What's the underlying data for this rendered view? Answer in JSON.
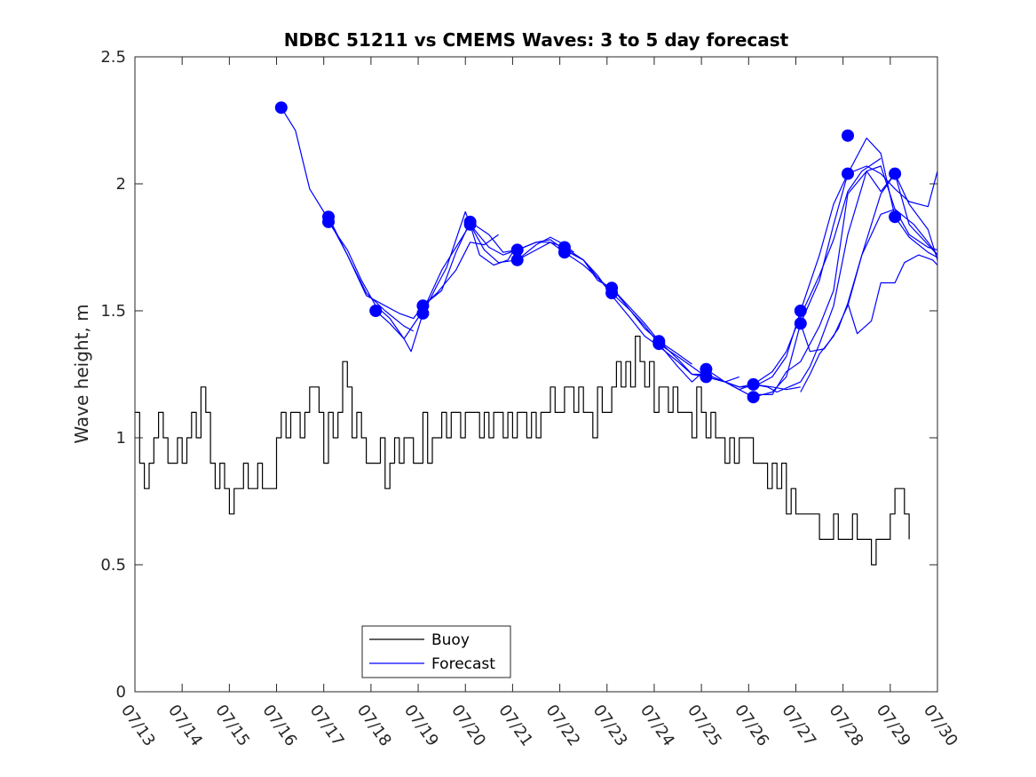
{
  "chart_data": {
    "type": "line",
    "title": "NDBC 51211 vs CMEMS Waves: 3 to 5 day forecast",
    "xlabel": "",
    "ylabel": "Wave height, m",
    "xlim": [
      "07/13",
      "07/30"
    ],
    "ylim": [
      0,
      2.5
    ],
    "x_tick_labels": [
      "07/13",
      "07/14",
      "07/15",
      "07/16",
      "07/17",
      "07/18",
      "07/19",
      "07/20",
      "07/21",
      "07/22",
      "07/23",
      "07/24",
      "07/25",
      "07/26",
      "07/27",
      "07/28",
      "07/29",
      "07/30"
    ],
    "y_ticks": [
      0,
      0.5,
      1,
      1.5,
      2,
      2.5
    ],
    "y_tick_labels": [
      "0",
      "0.5",
      "1",
      "1.5",
      "2",
      "2.5"
    ],
    "x_unit": "days since 07/13 00:00",
    "grid": false,
    "legend": {
      "position": "bottom-center",
      "entries": [
        {
          "name": "Buoy",
          "color": "#000000"
        },
        {
          "name": "Forecast",
          "color": "#0000ff"
        }
      ]
    },
    "series": [
      {
        "name": "Buoy",
        "color": "#000000",
        "x": [
          0.0,
          0.1,
          0.2,
          0.3,
          0.4,
          0.5,
          0.6,
          0.7,
          0.8,
          0.9,
          1.0,
          1.1,
          1.2,
          1.3,
          1.4,
          1.5,
          1.6,
          1.7,
          1.8,
          1.9,
          2.0,
          2.1,
          2.2,
          2.3,
          2.4,
          2.5,
          2.6,
          2.7,
          2.8,
          2.9,
          3.0,
          3.1,
          3.2,
          3.3,
          3.4,
          3.5,
          3.6,
          3.7,
          3.8,
          3.9,
          4.0,
          4.1,
          4.2,
          4.3,
          4.4,
          4.5,
          4.6,
          4.7,
          4.8,
          4.9,
          5.0,
          5.1,
          5.2,
          5.3,
          5.4,
          5.5,
          5.6,
          5.7,
          5.8,
          5.9,
          6.0,
          6.1,
          6.2,
          6.3,
          6.4,
          6.5,
          6.6,
          6.7,
          6.8,
          6.9,
          7.0,
          7.1,
          7.2,
          7.3,
          7.4,
          7.5,
          7.6,
          7.7,
          7.8,
          7.9,
          8.0,
          8.1,
          8.2,
          8.3,
          8.4,
          8.5,
          8.6,
          8.7,
          8.8,
          8.9,
          9.0,
          9.1,
          9.2,
          9.3,
          9.4,
          9.5,
          9.6,
          9.7,
          9.8,
          9.9,
          10.0,
          10.1,
          10.2,
          10.3,
          10.4,
          10.5,
          10.6,
          10.7,
          10.8,
          10.9,
          11.0,
          11.1,
          11.2,
          11.3,
          11.4,
          11.5,
          11.6,
          11.7,
          11.8,
          11.9,
          12.0,
          12.1,
          12.2,
          12.3,
          12.4,
          12.5,
          12.6,
          12.7,
          12.8,
          12.9,
          13.0,
          13.1,
          13.2,
          13.3,
          13.4,
          13.5,
          13.6,
          13.7,
          13.8,
          13.9,
          14.0,
          14.1,
          14.2,
          14.3,
          14.4,
          14.5,
          14.6,
          14.7,
          14.8,
          14.9,
          15.0,
          15.1,
          15.2,
          15.3,
          15.4,
          15.5,
          15.6,
          15.7,
          15.8,
          15.9,
          16.0,
          16.1,
          16.2,
          16.3,
          16.4
        ],
        "values": [
          1.1,
          0.9,
          0.8,
          0.9,
          1.0,
          1.1,
          1.0,
          0.9,
          0.9,
          1.0,
          0.9,
          1.0,
          1.1,
          1.0,
          1.2,
          1.1,
          0.9,
          0.8,
          0.9,
          0.8,
          0.7,
          0.8,
          0.8,
          0.9,
          0.8,
          0.8,
          0.9,
          0.8,
          0.8,
          0.8,
          1.0,
          1.1,
          1.0,
          1.1,
          1.1,
          1.0,
          1.1,
          1.2,
          1.2,
          1.1,
          0.9,
          1.1,
          1.0,
          1.1,
          1.3,
          1.2,
          1.0,
          1.1,
          1.0,
          0.9,
          0.9,
          0.9,
          1.0,
          0.8,
          0.9,
          1.0,
          0.9,
          1.0,
          1.0,
          0.9,
          0.9,
          1.1,
          0.9,
          1.0,
          1.0,
          1.1,
          1.0,
          1.1,
          1.1,
          1.0,
          1.1,
          1.1,
          1.1,
          1.0,
          1.1,
          1.0,
          1.1,
          1.1,
          1.0,
          1.1,
          1.0,
          1.1,
          1.1,
          1.0,
          1.1,
          1.0,
          1.1,
          1.1,
          1.2,
          1.1,
          1.1,
          1.2,
          1.2,
          1.1,
          1.2,
          1.1,
          1.1,
          1.0,
          1.2,
          1.1,
          1.1,
          1.2,
          1.3,
          1.2,
          1.3,
          1.2,
          1.4,
          1.3,
          1.2,
          1.3,
          1.1,
          1.2,
          1.2,
          1.1,
          1.2,
          1.1,
          1.1,
          1.1,
          1.0,
          1.2,
          1.1,
          1.0,
          1.1,
          1.0,
          1.0,
          0.9,
          1.0,
          0.9,
          1.0,
          1.0,
          1.0,
          0.9,
          0.9,
          0.9,
          0.8,
          0.9,
          0.8,
          0.9,
          0.7,
          0.8,
          0.7,
          0.7,
          0.7,
          0.7,
          0.7,
          0.6,
          0.6,
          0.6,
          0.7,
          0.6,
          0.6,
          0.6,
          0.7,
          0.6,
          0.6,
          0.6,
          0.5,
          0.6,
          0.6,
          0.6,
          0.7,
          0.8,
          0.8,
          0.7,
          0.6
        ]
      },
      {
        "name": "Forecast",
        "color": "#0000ff",
        "x": [
          3.1,
          3.4,
          3.7,
          4.1,
          4.5,
          4.9,
          5.3,
          5.7,
          5.9
        ],
        "values": [
          2.3,
          2.21,
          1.98,
          1.86,
          1.72,
          1.57,
          1.5,
          1.44,
          1.42
        ]
      },
      {
        "name": "",
        "color": "#0000ff",
        "x": [
          4.1,
          4.5,
          4.9,
          5.3,
          5.6,
          5.9,
          6.1,
          6.4,
          6.8,
          7.1,
          7.4,
          7.7
        ],
        "values": [
          1.87,
          1.72,
          1.56,
          1.52,
          1.49,
          1.47,
          1.52,
          1.57,
          1.66,
          1.77,
          1.76,
          1.8
        ]
      },
      {
        "name": "",
        "color": "#0000ff",
        "x": [
          4.1,
          4.5,
          4.8,
          5.1,
          5.4,
          5.7,
          5.85,
          6.1,
          6.4,
          6.6,
          7.0,
          7.1,
          7.3,
          7.6,
          7.9,
          8.1
        ],
        "values": [
          1.85,
          1.74,
          1.62,
          1.52,
          1.47,
          1.39,
          1.34,
          1.49,
          1.6,
          1.67,
          1.89,
          1.84,
          1.72,
          1.68,
          1.7,
          1.76
        ]
      },
      {
        "name": "",
        "color": "#0000ff",
        "x": [
          5.1,
          5.4,
          5.7,
          6.1,
          6.5,
          6.8,
          7.1,
          7.4,
          7.7,
          8.1,
          8.5,
          8.8,
          9.1,
          9.3
        ],
        "values": [
          1.5,
          1.45,
          1.39,
          1.5,
          1.66,
          1.75,
          1.84,
          1.74,
          1.69,
          1.7,
          1.76,
          1.79,
          1.76,
          1.73
        ]
      },
      {
        "name": "",
        "color": "#0000ff",
        "x": [
          6.1,
          6.5,
          6.8,
          7.1,
          7.5,
          7.8,
          8.1,
          8.5,
          8.8,
          9.1,
          9.5,
          9.8,
          10.1
        ],
        "values": [
          1.52,
          1.58,
          1.73,
          1.85,
          1.8,
          1.73,
          1.74,
          1.77,
          1.78,
          1.74,
          1.7,
          1.63,
          1.58
        ]
      },
      {
        "name": "",
        "color": "#0000ff",
        "x": [
          7.1,
          7.5,
          7.8,
          8.1,
          8.5,
          8.8,
          9.1,
          9.5,
          9.8,
          10.1,
          10.5,
          10.8,
          11.1,
          11.5,
          11.8
        ],
        "values": [
          1.84,
          1.75,
          1.72,
          1.74,
          1.77,
          1.77,
          1.75,
          1.7,
          1.62,
          1.59,
          1.5,
          1.43,
          1.38,
          1.33,
          1.29
        ]
      },
      {
        "name": "",
        "color": "#0000ff",
        "x": [
          8.1,
          8.5,
          8.8,
          9.1,
          9.5,
          9.8,
          10.1,
          10.5,
          10.8,
          11.1,
          11.5,
          11.8,
          12.1,
          12.5,
          12.8
        ],
        "values": [
          1.7,
          1.74,
          1.77,
          1.73,
          1.68,
          1.63,
          1.57,
          1.5,
          1.44,
          1.37,
          1.32,
          1.28,
          1.24,
          1.22,
          1.24
        ]
      },
      {
        "name": "",
        "color": "#0000ff",
        "x": [
          9.1,
          9.5,
          9.8,
          10.1,
          10.5,
          10.8,
          11.1,
          11.5,
          11.8,
          12.1,
          12.5,
          12.8,
          13.1,
          13.5,
          13.8,
          14.1
        ],
        "values": [
          1.74,
          1.7,
          1.64,
          1.56,
          1.47,
          1.4,
          1.36,
          1.3,
          1.25,
          1.24,
          1.22,
          1.2,
          1.21,
          1.2,
          1.19,
          1.2
        ]
      },
      {
        "name": "",
        "color": "#0000ff",
        "x": [
          10.1,
          10.5,
          10.8,
          11.1,
          11.5,
          11.8,
          12.1,
          12.5,
          12.8,
          13.1,
          13.5,
          13.8,
          14.1,
          14.5,
          14.8,
          15.1,
          15.4,
          15.8
        ],
        "values": [
          1.59,
          1.51,
          1.45,
          1.38,
          1.31,
          1.25,
          1.25,
          1.22,
          1.19,
          1.21,
          1.26,
          1.34,
          1.48,
          1.64,
          1.78,
          1.97,
          2.05,
          2.1
        ]
      },
      {
        "name": "",
        "color": "#0000ff",
        "x": [
          11.1,
          11.5,
          11.8,
          12.1,
          12.5,
          12.8,
          13.1,
          13.5,
          13.8,
          14.1,
          14.5,
          14.8,
          15.1,
          15.5,
          15.8,
          16.1,
          16.4,
          16.8,
          17.0
        ],
        "values": [
          1.37,
          1.28,
          1.22,
          1.27,
          1.22,
          1.19,
          1.16,
          1.18,
          1.24,
          1.45,
          1.62,
          1.84,
          2.04,
          2.18,
          2.12,
          1.87,
          1.79,
          1.73,
          1.71
        ]
      },
      {
        "name": "",
        "color": "#0000ff",
        "x": [
          12.1,
          12.5,
          12.8,
          13.1,
          13.5,
          13.8,
          14.1,
          14.5,
          14.8,
          15.1,
          15.5,
          15.8,
          16.1,
          16.4,
          16.8,
          17.0
        ],
        "values": [
          1.25,
          1.22,
          1.2,
          1.2,
          1.24,
          1.32,
          1.5,
          1.72,
          1.92,
          2.04,
          2.07,
          2.04,
          1.98,
          1.93,
          1.91,
          2.05
        ]
      },
      {
        "name": "",
        "color": "#0000ff",
        "x": [
          13.1,
          13.5,
          13.8,
          14.1,
          14.5,
          14.8,
          15.1,
          15.5,
          15.8,
          16.1,
          16.4,
          16.8,
          17.0
        ],
        "values": [
          1.17,
          1.17,
          1.26,
          1.3,
          1.44,
          1.58,
          1.96,
          2.05,
          2.07,
          1.9,
          1.8,
          1.75,
          1.74
        ]
      },
      {
        "name": "",
        "color": "#0000ff",
        "x": [
          13.1,
          13.4,
          13.6,
          14.1,
          14.3,
          14.5,
          14.8,
          15.1,
          15.5,
          15.8,
          16.1,
          16.4,
          16.8,
          17.0
        ],
        "values": [
          1.21,
          1.2,
          1.18,
          1.22,
          1.28,
          1.37,
          1.52,
          1.8,
          2.05,
          1.97,
          2.04,
          1.84,
          1.76,
          1.72
        ]
      },
      {
        "name": "",
        "color": "#0000ff",
        "x": [
          14.1,
          14.3,
          14.5,
          14.8,
          15.1,
          15.4,
          15.8,
          16.1,
          16.5,
          16.8,
          17.0
        ],
        "values": [
          1.18,
          1.25,
          1.33,
          1.4,
          1.52,
          1.72,
          1.88,
          1.9,
          1.84,
          1.77,
          1.72
        ]
      },
      {
        "name": "",
        "color": "#0000ff",
        "x": [
          14.1,
          14.3,
          14.6,
          14.9,
          15.1,
          15.4,
          15.8,
          16.1,
          16.4,
          16.8,
          17.0
        ],
        "values": [
          1.45,
          1.34,
          1.35,
          1.43,
          1.53,
          1.72,
          1.96,
          2.04,
          1.92,
          1.82,
          1.7
        ]
      },
      {
        "name": "",
        "color": "#0000ff",
        "x": [
          15.1,
          15.3,
          15.6,
          15.8,
          16.1,
          16.3,
          16.6,
          16.9,
          17.0
        ],
        "values": [
          1.53,
          1.41,
          1.46,
          1.61,
          1.61,
          1.69,
          1.72,
          1.7,
          1.68
        ]
      }
    ],
    "markers": {
      "color": "#0000ff",
      "x": [
        3.1,
        4.1,
        4.1,
        5.1,
        6.1,
        6.1,
        7.1,
        7.1,
        8.1,
        8.1,
        9.1,
        9.1,
        10.1,
        10.1,
        11.1,
        11.1,
        12.1,
        12.1,
        13.1,
        13.1,
        14.1,
        14.1,
        15.1,
        15.1,
        16.1,
        16.1
      ],
      "values": [
        2.3,
        1.87,
        1.85,
        1.5,
        1.52,
        1.49,
        1.84,
        1.85,
        1.74,
        1.7,
        1.75,
        1.73,
        1.59,
        1.57,
        1.38,
        1.37,
        1.27,
        1.24,
        1.21,
        1.16,
        1.5,
        1.45,
        2.19,
        2.04,
        2.04,
        1.87
      ]
    }
  }
}
